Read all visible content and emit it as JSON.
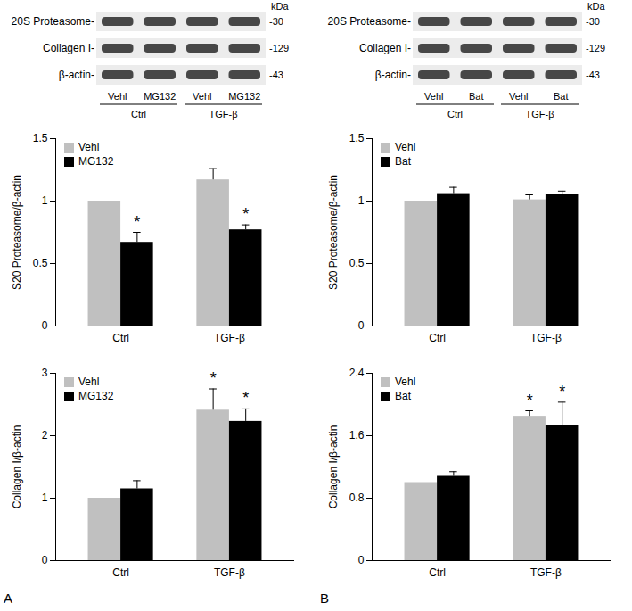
{
  "chart_data": [
    {
      "type": "bar",
      "y_label": "S20 Proteasome/β-actin",
      "categories": [
        "Ctrl",
        "TGF-β"
      ],
      "series": [
        {
          "name": "Vehl",
          "color": "#c0c0c0",
          "values": [
            1,
            1.17
          ],
          "errors": [
            0,
            0.09
          ]
        },
        {
          "name": "MG132",
          "color": "#000000",
          "values": [
            0.67,
            0.77
          ],
          "errors": [
            0.08,
            0.04
          ]
        }
      ],
      "ylim": [
        0,
        1.5
      ],
      "yticks": [
        0,
        0.5,
        1,
        1.5
      ],
      "legend": "top-left",
      "annotations": [
        {
          "text": "*",
          "category": "Ctrl",
          "series": "MG132"
        },
        {
          "text": "*",
          "category": "TGF-β",
          "series": "MG132"
        }
      ]
    },
    {
      "type": "bar",
      "y_label": "Collagen I/β-actin",
      "categories": [
        "Ctrl",
        "TGF-β"
      ],
      "series": [
        {
          "name": "Vehl",
          "color": "#c0c0c0",
          "values": [
            1,
            2.41
          ],
          "errors": [
            0,
            0.34
          ]
        },
        {
          "name": "MG132",
          "color": "#000000",
          "values": [
            1.15,
            2.23
          ],
          "errors": [
            0.13,
            0.2
          ]
        }
      ],
      "ylim": [
        0,
        3
      ],
      "yticks": [
        0,
        1,
        2,
        3
      ],
      "legend": "top-left",
      "annotations": [
        {
          "text": "*",
          "category": "TGF-β",
          "series": "Vehl"
        },
        {
          "text": "*",
          "category": "TGF-β",
          "series": "MG132"
        }
      ]
    },
    {
      "type": "bar",
      "y_label": "S20 Proteasome/β-actin",
      "categories": [
        "Ctrl",
        "TGF-β"
      ],
      "series": [
        {
          "name": "Vehl",
          "color": "#c0c0c0",
          "values": [
            1,
            1.01
          ],
          "errors": [
            0,
            0.04
          ]
        },
        {
          "name": "Bat",
          "color": "#000000",
          "values": [
            1.06,
            1.05
          ],
          "errors": [
            0.05,
            0.03
          ]
        }
      ],
      "ylim": [
        0,
        1.5
      ],
      "yticks": [
        0,
        0.5,
        1,
        1.5
      ],
      "legend": "top-left",
      "annotations": []
    },
    {
      "type": "bar",
      "y_label": "Collagen I/β-actin",
      "categories": [
        "Ctrl",
        "TGF-β"
      ],
      "series": [
        {
          "name": "Vehl",
          "color": "#c0c0c0",
          "values": [
            1,
            1.85
          ],
          "errors": [
            0,
            0.07
          ]
        },
        {
          "name": "Bat",
          "color": "#000000",
          "values": [
            1.08,
            1.73
          ],
          "errors": [
            0.06,
            0.3
          ]
        }
      ],
      "ylim": [
        0,
        2.4
      ],
      "yticks": [
        0,
        0.8,
        1.6,
        2.4
      ],
      "legend": "top-left",
      "annotations": [
        {
          "text": "*",
          "category": "TGF-β",
          "series": "Vehl"
        },
        {
          "text": "*",
          "category": "TGF-β",
          "series": "Bat"
        }
      ]
    }
  ],
  "blots": [
    {
      "panel": "A",
      "unit": "kDa",
      "rows": [
        {
          "label": "20S Proteasome-",
          "size": "-30"
        },
        {
          "label": "Collagen I-",
          "size": "-129"
        },
        {
          "label": "β-actin-",
          "size": "-43"
        }
      ],
      "lanes": [
        "Vehl",
        "MG132",
        "Vehl",
        "MG132"
      ],
      "groups": [
        "Ctrl",
        "TGF-β"
      ]
    },
    {
      "panel": "B",
      "unit": "kDa",
      "rows": [
        {
          "label": "20S Proteasome-",
          "size": "-30"
        },
        {
          "label": "Collagen I-",
          "size": "-129"
        },
        {
          "label": "β-actin-",
          "size": "-43"
        }
      ],
      "lanes": [
        "Vehl",
        "Bat",
        "Vehl",
        "Bat"
      ],
      "groups": [
        "Ctrl",
        "TGF-β"
      ]
    }
  ]
}
